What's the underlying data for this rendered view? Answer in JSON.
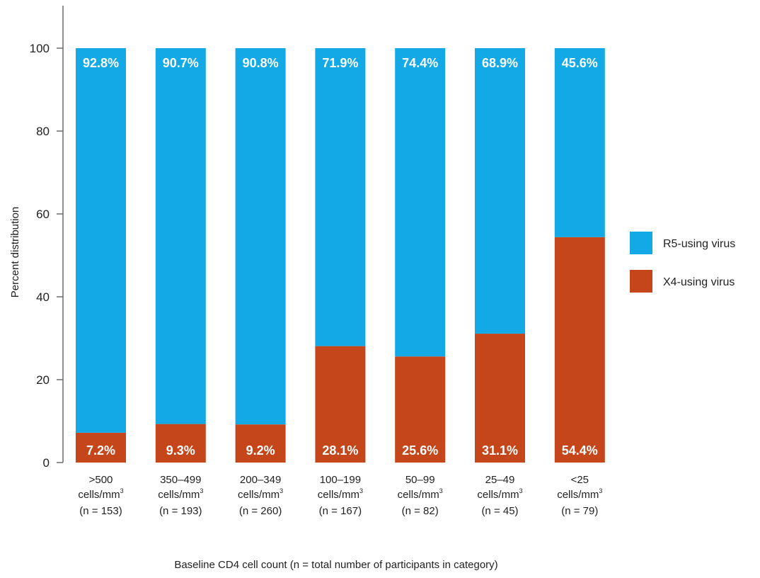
{
  "chart_data": {
    "type": "bar",
    "stacked": true,
    "categories": [
      {
        "line1": ">500",
        "line2": "cells/mm",
        "sup": "3",
        "line3": "(n = 153)"
      },
      {
        "line1": "350–499",
        "line2": "cells/mm",
        "sup": "3",
        "line3": "(n = 193)"
      },
      {
        "line1": "200–349",
        "line2": "cells/mm",
        "sup": "3",
        "line3": "(n = 260)"
      },
      {
        "line1": "100–199",
        "line2": "cells/mm",
        "sup": "3",
        "line3": "(n = 167)"
      },
      {
        "line1": "50–99",
        "line2": "cells/mm",
        "sup": "3",
        "line3": "(n = 82)"
      },
      {
        "line1": "25–49",
        "line2": "cells/mm",
        "sup": "3",
        "line3": "(n = 45)"
      },
      {
        "line1": "<25",
        "line2": "cells/mm",
        "sup": "3",
        "line3": "(n = 79)"
      }
    ],
    "series": [
      {
        "name": "X4-using virus",
        "color": "#c5461a",
        "values": [
          7.2,
          9.3,
          9.2,
          28.1,
          25.6,
          31.1,
          54.4
        ],
        "labels": [
          "7.2%",
          "9.3%",
          "9.2%",
          "28.1%",
          "25.6%",
          "31.1%",
          "54.4%"
        ]
      },
      {
        "name": "R5-using virus",
        "color": "#12a9e6",
        "values": [
          92.8,
          90.7,
          90.8,
          71.9,
          74.4,
          68.9,
          45.6
        ],
        "labels": [
          "92.8%",
          "90.7%",
          "90.8%",
          "71.9%",
          "74.4%",
          "68.9%",
          "45.6%"
        ]
      }
    ],
    "legend_order": [
      "R5-using virus",
      "X4-using virus"
    ],
    "legend_position": "right",
    "title": "",
    "xlabel": "Baseline CD4 cell count (n = total number of participants in category)",
    "ylabel": "Percent distribution",
    "ylim": [
      0,
      100
    ],
    "yticks": [
      "0",
      "20",
      "40",
      "60",
      "80",
      "100"
    ],
    "grid": false
  }
}
